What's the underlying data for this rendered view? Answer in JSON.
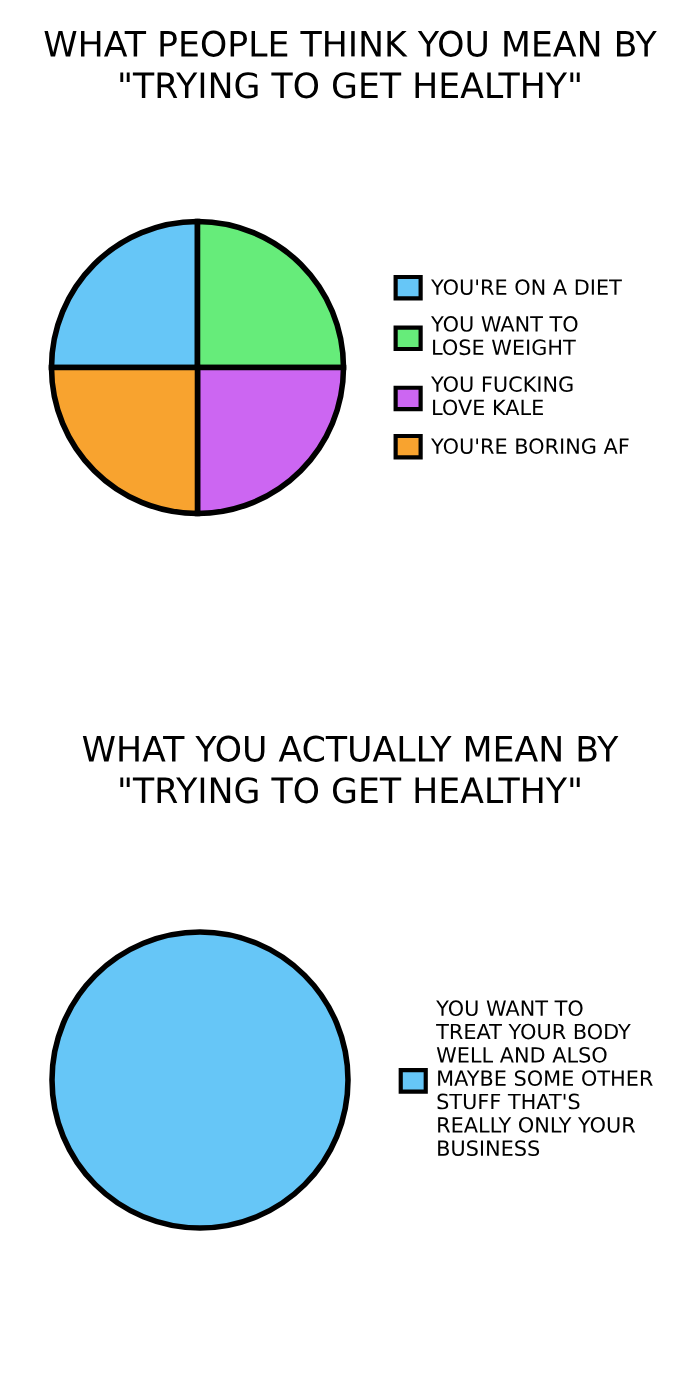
{
  "chart_data": [
    {
      "type": "pie",
      "title": "WHAT PEOPLE THINK YOU MEAN BY\n\"TRYING TO GET HEALTHY\"",
      "categories": [
        "YOU'RE ON A DIET",
        "YOU WANT TO\nLOSE WEIGHT",
        "YOU FUCKING\nLOVE KALE",
        "YOU'RE BORING AF"
      ],
      "values": [
        25,
        25,
        25,
        25
      ],
      "colors": [
        "#66c6f7",
        "#66ec7a",
        "#cc66f2",
        "#f8a32f"
      ],
      "legend": "right"
    },
    {
      "type": "pie",
      "title": "WHAT YOU ACTUALLY MEAN BY\n\"TRYING TO GET HEALTHY\"",
      "categories": [
        "YOU WANT TO\nTREAT YOUR BODY\nWELL AND ALSO\nMAYBE SOME OTHER\nSTUFF THAT'S\nREALLY ONLY YOUR\nBUSINESS"
      ],
      "values": [
        100
      ],
      "colors": [
        "#66c6f7"
      ],
      "legend": "right"
    }
  ]
}
